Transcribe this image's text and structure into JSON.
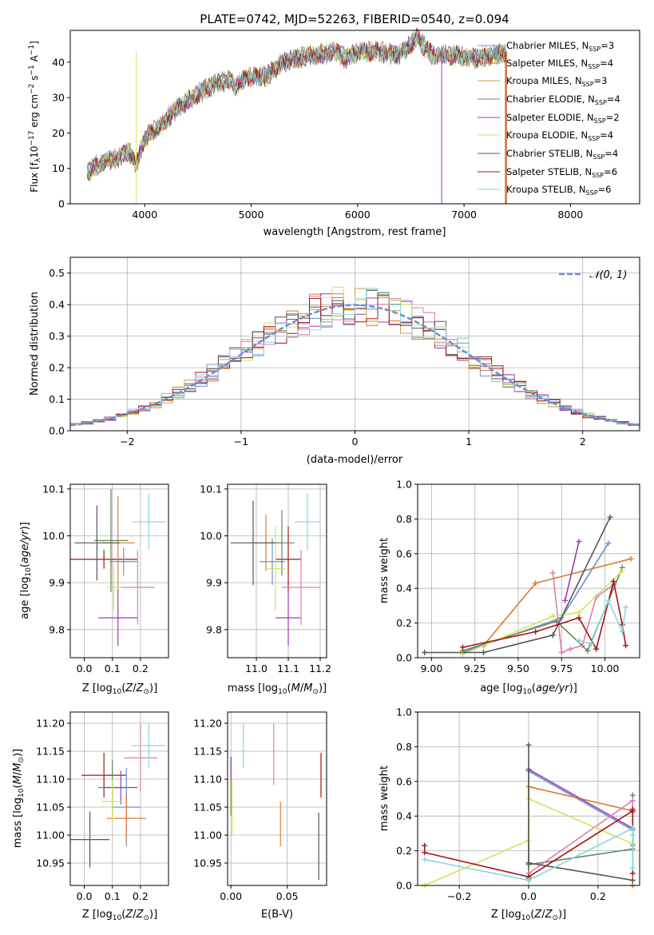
{
  "figure": {
    "title": "PLATE=0742, MJD=52263, FIBERID=0540, z=0.094"
  },
  "colors": [
    "#6a8fd8",
    "#e07a2b",
    "#5f8a5f",
    "#9b3cb7",
    "#d97fb0",
    "#d6e35a",
    "#555555",
    "#a31515",
    "#86d6df"
  ],
  "chart_data": [
    {
      "id": "spectrum",
      "type": "line",
      "title": "PLATE=0742, MJD=52263, FIBERID=0540, z=0.094",
      "xlabel": "wavelength [Angstrom, rest frame]",
      "ylabel": "Flux [f_λ 10^-17 erg cm^-2 s^-1 A^-1]",
      "xlim": [
        3300,
        8650
      ],
      "ylim": [
        0,
        49
      ],
      "xticks": [
        4000,
        5000,
        6000,
        7000,
        8000
      ],
      "yticks": [
        0,
        10,
        20,
        30,
        40
      ],
      "grid": false,
      "legend_position": "right",
      "continuum": {
        "x": [
          3460,
          3550,
          3650,
          3750,
          3850,
          3920,
          3980,
          4050,
          4150,
          4300,
          4400,
          4500,
          4600,
          4700,
          4800,
          4860,
          4950,
          5050,
          5150,
          5250,
          5400,
          5600,
          5800,
          5890,
          6000,
          6200,
          6400,
          6560,
          6700,
          6900,
          7100,
          7300,
          7400
        ],
        "y": [
          9,
          11,
          12,
          13,
          15,
          11,
          17,
          20,
          22,
          27,
          29,
          31,
          33,
          34,
          35,
          33,
          36,
          36,
          36,
          39,
          41,
          42,
          43,
          41,
          43,
          43,
          42,
          47,
          42,
          42,
          41,
          42,
          43
        ]
      },
      "series": [
        {
          "name": "Chabrier MILES, N_SSP=3",
          "color_index": 0
        },
        {
          "name": "Salpeter MILES, N_SSP=4",
          "color_index": 1
        },
        {
          "name": "Kroupa MILES, N_SSP=3",
          "color_index": 1
        },
        {
          "name": "Chabrier ELODIE, N_SSP=4",
          "color_index": 2
        },
        {
          "name": "Salpeter ELODIE, N_SSP=2",
          "color_index": 3
        },
        {
          "name": "Kroupa ELODIE, N_SSP=4",
          "color_index": 5
        },
        {
          "name": "Chabrier STELIB, N_SSP=4",
          "color_index": 6
        },
        {
          "name": "Salpeter STELIB, N_SSP=6",
          "color_index": 7
        },
        {
          "name": "Kroupa STELIB, N_SSP=6",
          "color_index": 8
        }
      ]
    },
    {
      "id": "residuals",
      "type": "line",
      "xlabel": "(data-model)/error",
      "ylabel": "Normed distribution",
      "xlim": [
        -2.5,
        2.5
      ],
      "ylim": [
        0,
        0.55
      ],
      "xticks": [
        -2,
        -1,
        0,
        1,
        2
      ],
      "yticks": [
        0.0,
        0.1,
        0.2,
        0.3,
        0.4,
        0.5
      ],
      "grid": true,
      "legend_position": "top-right",
      "reference_curve": {
        "name": "𝒩(0, 1)",
        "color": "#6a8fd8",
        "mean": 0,
        "sigma": 1
      },
      "histogram_bin_width": 0.1
    },
    {
      "id": "z_vs_age",
      "type": "scatter",
      "xlabel": "Z [log10(Z/Z⊙)]",
      "ylabel": "age [log10(age/yr)]",
      "xlim": [
        -0.05,
        0.3
      ],
      "ylim": [
        9.74,
        10.11
      ],
      "xticks": [
        0.0,
        0.1,
        0.2
      ],
      "yticks": [
        9.8,
        9.9,
        10.0,
        10.1
      ],
      "grid": true,
      "points": [
        {
          "x": 0.07,
          "y": 9.95,
          "xerr": 0.12,
          "yerr": 0.02,
          "color_index": 7
        },
        {
          "x": 0.14,
          "y": 9.945,
          "xerr": 0.05,
          "yerr": 0.03,
          "color_index": 0
        },
        {
          "x": 0.12,
          "y": 9.985,
          "xerr": 0.06,
          "yerr": 0.1,
          "color_index": 1
        },
        {
          "x": 0.095,
          "y": 9.99,
          "xerr": 0.06,
          "yerr": 0.11,
          "color_index": 2
        },
        {
          "x": 0.12,
          "y": 9.825,
          "xerr": 0.07,
          "yerr": 0.06,
          "color_index": 3
        },
        {
          "x": 0.19,
          "y": 9.89,
          "xerr": 0.06,
          "yerr": 0.08,
          "color_index": 4
        },
        {
          "x": 0.105,
          "y": 9.89,
          "xerr": 0.025,
          "yerr": 0.05,
          "color_index": 5
        },
        {
          "x": 0.045,
          "y": 9.985,
          "xerr": 0.08,
          "yerr": 0.08,
          "color_index": 6
        },
        {
          "x": 0.23,
          "y": 10.03,
          "xerr": 0.06,
          "yerr": 0.06,
          "color_index": 8
        }
      ]
    },
    {
      "id": "mass_vs_age",
      "type": "scatter",
      "xlabel": "mass [log10(M/M⊙)]",
      "ylabel": "",
      "xlim": [
        10.91,
        11.22
      ],
      "ylim": [
        9.74,
        10.11
      ],
      "xticks": [
        11.0,
        11.1,
        11.2
      ],
      "yticks": [
        9.8,
        9.9,
        10.0,
        10.1
      ],
      "grid": true,
      "points": [
        {
          "x": 11.1,
          "y": 9.95,
          "xerr": 0.04,
          "yerr": 0.07,
          "color_index": 7
        },
        {
          "x": 11.05,
          "y": 9.945,
          "xerr": 0.04,
          "yerr": 0.05,
          "color_index": 0
        },
        {
          "x": 11.03,
          "y": 9.985,
          "xerr": 0.05,
          "yerr": 0.06,
          "color_index": 1
        },
        {
          "x": 11.08,
          "y": 9.985,
          "xerr": 0.04,
          "yerr": 0.07,
          "color_index": 2
        },
        {
          "x": 11.1,
          "y": 9.825,
          "xerr": 0.04,
          "yerr": 0.06,
          "color_index": 3
        },
        {
          "x": 11.14,
          "y": 9.89,
          "xerr": 0.06,
          "yerr": 0.08,
          "color_index": 4
        },
        {
          "x": 11.06,
          "y": 9.93,
          "xerr": 0.03,
          "yerr": 0.09,
          "color_index": 5
        },
        {
          "x": 10.99,
          "y": 9.985,
          "xerr": 0.07,
          "yerr": 0.09,
          "color_index": 6
        },
        {
          "x": 11.16,
          "y": 10.03,
          "xerr": 0.04,
          "yerr": 0.06,
          "color_index": 8
        }
      ]
    },
    {
      "id": "age_vs_weight",
      "type": "line",
      "xlabel": "age [log10(age/yr)]",
      "ylabel": "mass weight",
      "xlim": [
        8.92,
        10.2
      ],
      "ylim": [
        0,
        1.0
      ],
      "xticks": [
        9.0,
        9.25,
        9.5,
        9.75,
        10.0
      ],
      "yticks": [
        0.0,
        0.2,
        0.4,
        0.6,
        0.8,
        1.0
      ],
      "grid": true,
      "series": [
        {
          "color_index": 0,
          "x": [
            9.18,
            9.75,
            10.02
          ],
          "y": [
            0.03,
            0.23,
            0.66
          ]
        },
        {
          "color_index": 1,
          "x": [
            9.3,
            9.6,
            10.15
          ],
          "y": [
            0.07,
            0.43,
            0.57
          ]
        },
        {
          "color_index": 2,
          "x": [
            9.18,
            9.72,
            9.9,
            10.1
          ],
          "y": [
            0.04,
            0.21,
            0.04,
            0.52
          ]
        },
        {
          "color_index": 3,
          "x": [
            9.77,
            9.85
          ],
          "y": [
            0.33,
            0.67
          ]
        },
        {
          "color_index": 4,
          "x": [
            9.7,
            9.75,
            9.8,
            9.87,
            9.95,
            10.05
          ],
          "y": [
            0.49,
            0.03,
            0.05,
            0.07,
            0.35,
            0.42
          ]
        },
        {
          "color_index": 5,
          "x": [
            9.18,
            9.7,
            9.85,
            10.1
          ],
          "y": [
            0.02,
            0.24,
            0.26,
            0.5
          ]
        },
        {
          "color_index": 6,
          "x": [
            8.96,
            9.3,
            9.7,
            10.03
          ],
          "y": [
            0.03,
            0.03,
            0.13,
            0.81
          ]
        },
        {
          "color_index": 7,
          "x": [
            9.18,
            9.6,
            9.85,
            9.95,
            10.05,
            10.1,
            10.12
          ],
          "y": [
            0.06,
            0.15,
            0.23,
            0.05,
            0.44,
            0.19,
            0.07
          ]
        },
        {
          "color_index": 8,
          "x": [
            9.85,
            9.92,
            10.02,
            10.1,
            10.12
          ],
          "y": [
            0.1,
            0.08,
            0.33,
            0.15,
            0.29
          ]
        }
      ]
    },
    {
      "id": "z_vs_mass",
      "type": "scatter",
      "xlabel": "Z [log10(Z/Z⊙)]",
      "ylabel": "mass [log10(M/M⊙)]",
      "xlim": [
        -0.05,
        0.3
      ],
      "ylim": [
        10.91,
        11.22
      ],
      "xticks": [
        0.0,
        0.1,
        0.2
      ],
      "yticks": [
        10.95,
        11.0,
        11.05,
        11.1,
        11.15,
        11.2
      ],
      "grid": true,
      "points": [
        {
          "x": 0.07,
          "y": 11.107,
          "xerr": 0.08,
          "yerr": 0.04,
          "color_index": 7
        },
        {
          "x": 0.15,
          "y": 11.05,
          "xerr": 0.05,
          "yerr": 0.07,
          "color_index": 0
        },
        {
          "x": 0.15,
          "y": 11.03,
          "xerr": 0.07,
          "yerr": 0.04,
          "color_index": 1
        },
        {
          "x": 0.1,
          "y": 11.085,
          "xerr": 0.05,
          "yerr": 0.05,
          "color_index": 2
        },
        {
          "x": 0.13,
          "y": 11.085,
          "xerr": 0.06,
          "yerr": 0.03,
          "color_index": 3
        },
        {
          "x": 0.2,
          "y": 11.138,
          "xerr": 0.06,
          "yerr": 0.06,
          "color_index": 4
        },
        {
          "x": 0.1,
          "y": 11.06,
          "xerr": 0.04,
          "yerr": 0.04,
          "color_index": 5
        },
        {
          "x": 0.02,
          "y": 10.992,
          "xerr": 0.07,
          "yerr": 0.05,
          "color_index": 6
        },
        {
          "x": 0.23,
          "y": 11.16,
          "xerr": 0.06,
          "yerr": 0.04,
          "color_index": 8
        }
      ]
    },
    {
      "id": "ebv_vs_mass",
      "type": "scatter",
      "xlabel": "E(B-V)",
      "ylabel": "",
      "xlim": [
        -0.003,
        0.085
      ],
      "ylim": [
        10.91,
        11.22
      ],
      "xticks": [
        0.0,
        0.05
      ],
      "yticks": [
        10.95,
        11.0,
        11.05,
        11.1,
        11.15,
        11.2
      ],
      "grid": true,
      "points": [
        {
          "x": 0.08,
          "y": 11.107,
          "yerr": 0.04,
          "color_index": 7
        },
        {
          "x": 0.0,
          "y": 11.12,
          "yerr": 0.02,
          "color_index": 0
        },
        {
          "x": 0.044,
          "y": 11.02,
          "yerr": 0.04,
          "color_index": 1
        },
        {
          "x": 0.0,
          "y": 11.085,
          "yerr": 0.05,
          "color_index": 2
        },
        {
          "x": 0.0,
          "y": 11.12,
          "yerr": 0.02,
          "color_index": 3
        },
        {
          "x": 0.038,
          "y": 11.145,
          "yerr": 0.055,
          "color_index": 4
        },
        {
          "x": 0.001,
          "y": 11.05,
          "yerr": 0.05,
          "color_index": 5
        },
        {
          "x": 0.078,
          "y": 10.98,
          "yerr": 0.06,
          "color_index": 6
        },
        {
          "x": 0.011,
          "y": 11.16,
          "yerr": 0.04,
          "color_index": 8
        }
      ]
    },
    {
      "id": "z_vs_weight",
      "type": "line",
      "xlabel": "Z [log10(Z/Z⊙)]",
      "ylabel": "mass weight",
      "xlim": [
        -0.32,
        0.32
      ],
      "ylim": [
        0,
        1.0
      ],
      "xticks": [
        -0.2,
        0.0,
        0.2
      ],
      "yticks": [
        0.0,
        0.2,
        0.4,
        0.6,
        0.8,
        1.0
      ],
      "grid": true,
      "series": [
        {
          "color_index": 0,
          "x": [
            0.0,
            0.0,
            0.3,
            0.3
          ],
          "y": [
            0.03,
            0.66,
            0.32,
            0.23
          ]
        },
        {
          "color_index": 1,
          "x": [
            0.0,
            0.0,
            0.3,
            0.3
          ],
          "y": [
            0.07,
            0.57,
            0.43,
            0.0
          ]
        },
        {
          "color_index": 2,
          "x": [
            0.0,
            0.0,
            0.3,
            0.3
          ],
          "y": [
            0.04,
            0.12,
            0.21,
            0.52
          ]
        },
        {
          "color_index": 3,
          "x": [
            0.0,
            0.3
          ],
          "y": [
            0.67,
            0.33
          ]
        },
        {
          "color_index": 4,
          "x": [
            0.0,
            0.0,
            0.3,
            0.3
          ],
          "y": [
            0.03,
            0.07,
            0.49,
            0.42
          ]
        },
        {
          "color_index": 5,
          "x": [
            -0.3,
            0.0,
            0.0,
            0.3,
            0.3
          ],
          "y": [
            0.0,
            0.26,
            0.5,
            0.24,
            0.24
          ]
        },
        {
          "color_index": 6,
          "x": [
            0.0,
            0.0,
            0.3
          ],
          "y": [
            0.81,
            0.13,
            0.03
          ]
        },
        {
          "color_index": 7,
          "x": [
            -0.3,
            -0.3,
            0.0,
            0.3,
            0.3,
            0.3
          ],
          "y": [
            0.23,
            0.19,
            0.05,
            0.43,
            0.07,
            0.44
          ]
        },
        {
          "color_index": 8,
          "x": [
            -0.3,
            0.0,
            0.3,
            0.3,
            0.3
          ],
          "y": [
            0.15,
            0.03,
            0.33,
            0.1,
            0.29
          ]
        }
      ]
    }
  ]
}
